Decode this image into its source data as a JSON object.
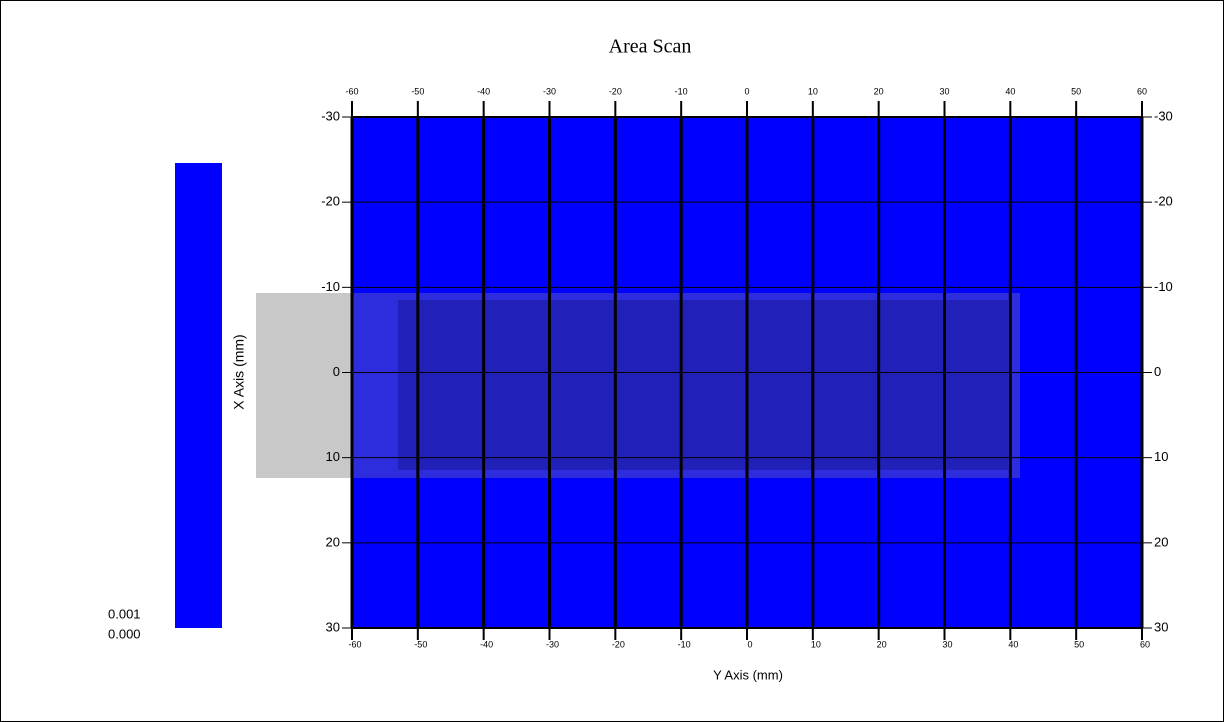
{
  "chart_data": {
    "type": "heatmap",
    "title": "Area Scan",
    "x_label": "Y Axis (mm)",
    "y_label": "X Axis (mm)",
    "xlim": [
      -60,
      60
    ],
    "ylim": [
      -30,
      30
    ],
    "xticks": [
      -60,
      -50,
      -40,
      -30,
      -20,
      -10,
      0,
      10,
      20,
      30,
      40,
      50,
      60
    ],
    "yticks": [
      -30,
      -20,
      -10,
      0,
      10,
      20,
      30
    ],
    "grid": true,
    "color": "#0000ff",
    "colorbar": {
      "ticks": [
        0.001,
        {
          "value": 0,
          "label": "0.000"
        }
      ]
    }
  }
}
